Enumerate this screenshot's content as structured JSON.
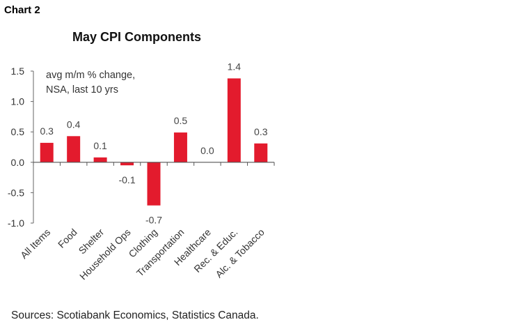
{
  "header": {
    "chart_label": "Chart 2"
  },
  "footer": {
    "source": "Sources: Scotiabank Economics, Statistics Canada."
  },
  "chart_data": {
    "type": "bar",
    "title": "May CPI Components",
    "annotation": [
      "avg m/m % change,",
      "NSA, last 10 yrs"
    ],
    "categories": [
      "All Items",
      "Food",
      "Shelter",
      "Household Ops",
      "Clothing",
      "Transportation",
      "Healthcare",
      "Rec. & Educ.",
      "Alc. & Tobacco"
    ],
    "values": [
      0.32,
      0.43,
      0.08,
      -0.05,
      -0.71,
      0.49,
      0.0,
      1.38,
      0.31
    ],
    "data_labels": [
      "0.3",
      "0.4",
      "0.1",
      "-0.1",
      "-0.7",
      "0.5",
      "0.0",
      "1.4",
      "0.3"
    ],
    "ylim": [
      -1.0,
      1.5
    ],
    "yticks": [
      -1.0,
      -0.5,
      0.0,
      0.5,
      1.0,
      1.5
    ],
    "ytick_labels": [
      "-1.0",
      "-0.5",
      "0.0",
      "0.5",
      "1.0",
      "1.5"
    ],
    "grid": false,
    "bar_color": "#e31b2d"
  }
}
